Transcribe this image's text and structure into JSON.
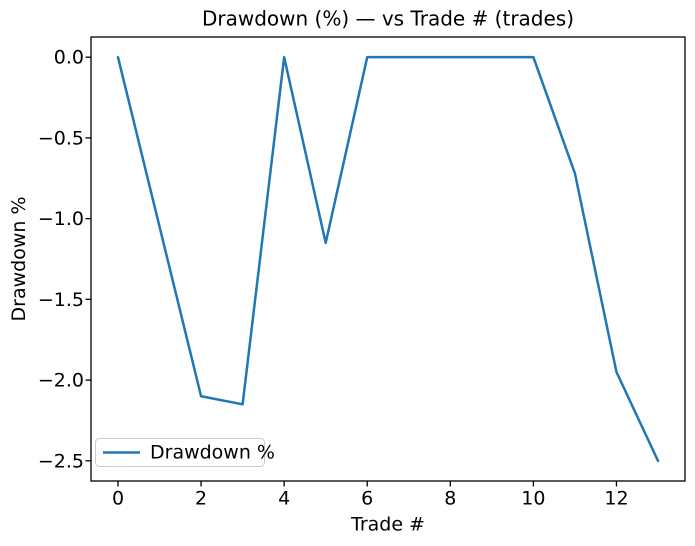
{
  "figure": {
    "background": "#ffffff"
  },
  "chart_data": {
    "type": "line",
    "title": "Drawdown (%) — vs Trade # (trades)",
    "xlabel": "Trade #",
    "ylabel": "Drawdown %",
    "x": [
      0,
      1,
      2,
      3,
      4,
      5,
      6,
      7,
      8,
      9,
      10,
      11,
      12,
      13
    ],
    "series": [
      {
        "name": "Drawdown %",
        "color": "#1f77b4",
        "values": [
          0.0,
          -1.05,
          -2.1,
          -2.15,
          0.0,
          -1.15,
          0.0,
          0.0,
          0.0,
          0.0,
          0.0,
          -0.72,
          -1.95,
          -2.5
        ]
      }
    ],
    "xticks": [
      0,
      2,
      4,
      6,
      8,
      10,
      12
    ],
    "yticks": [
      0.0,
      -0.5,
      -1.0,
      -1.5,
      -2.0,
      -2.5
    ],
    "xlim": [
      -0.65,
      13.65
    ],
    "ylim": [
      -2.625,
      0.125
    ],
    "grid": false,
    "legend": {
      "position": "lower left",
      "label": "Drawdown %"
    },
    "axis_color": "#000000"
  }
}
